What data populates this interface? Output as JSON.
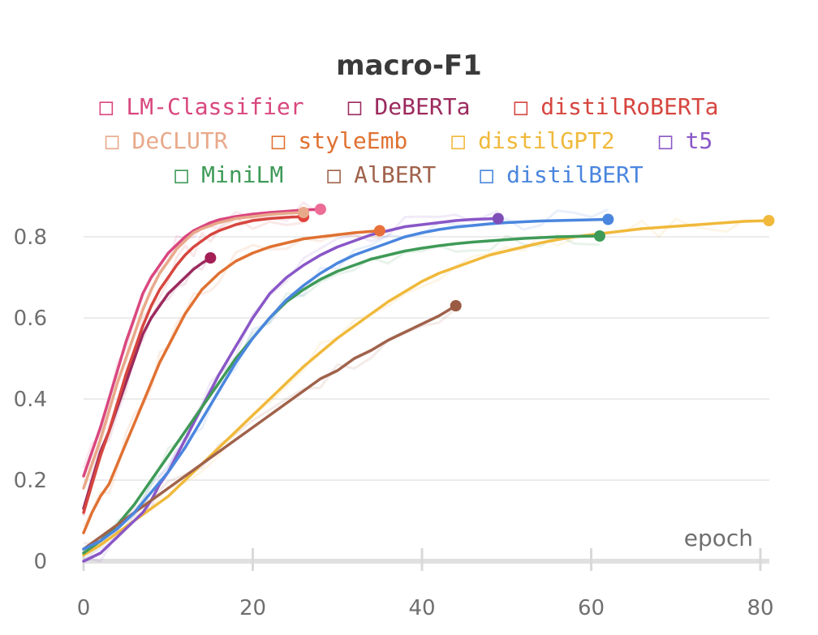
{
  "chart_data": {
    "type": "line",
    "title": "macro-F1",
    "xlabel": "epoch",
    "ylabel": "",
    "xlim": [
      0,
      81
    ],
    "ylim": [
      0,
      0.9
    ],
    "x_ticks": [
      "0",
      "20",
      "40",
      "60",
      "80"
    ],
    "y_ticks": [
      "0",
      "0.2",
      "0.4",
      "0.6",
      "0.8"
    ],
    "grid": "horizontal",
    "legend_position": "top",
    "legend_marker": "□",
    "series": [
      {
        "name": "LM-Classifier",
        "color": "#d9477e",
        "marker_color": "#ec6c95",
        "x": [
          0,
          1,
          2,
          3,
          4,
          5,
          6,
          7,
          8,
          9,
          10,
          11,
          12,
          13,
          14,
          15,
          16,
          18,
          20,
          22,
          24,
          26,
          28
        ],
        "y": [
          0.21,
          0.27,
          0.33,
          0.4,
          0.47,
          0.54,
          0.6,
          0.66,
          0.7,
          0.73,
          0.76,
          0.78,
          0.8,
          0.815,
          0.825,
          0.835,
          0.842,
          0.85,
          0.856,
          0.86,
          0.863,
          0.866,
          0.868
        ]
      },
      {
        "name": "DeBERTa",
        "color": "#9c2a5e",
        "marker_color": "#a31f56",
        "x": [
          0,
          1,
          2,
          3,
          4,
          5,
          6,
          7,
          8,
          9,
          10,
          11,
          12,
          13,
          14,
          15
        ],
        "y": [
          0.13,
          0.2,
          0.27,
          0.32,
          0.38,
          0.44,
          0.5,
          0.56,
          0.6,
          0.63,
          0.66,
          0.68,
          0.7,
          0.72,
          0.735,
          0.748
        ]
      },
      {
        "name": "distilRoBERTa",
        "color": "#d6463f",
        "marker_color": "#e0443c",
        "x": [
          0,
          1,
          2,
          3,
          4,
          5,
          6,
          7,
          8,
          9,
          10,
          11,
          12,
          13,
          14,
          15,
          16,
          18,
          20,
          22,
          24,
          26
        ],
        "y": [
          0.12,
          0.19,
          0.26,
          0.32,
          0.39,
          0.46,
          0.52,
          0.58,
          0.63,
          0.67,
          0.7,
          0.73,
          0.755,
          0.775,
          0.79,
          0.805,
          0.815,
          0.83,
          0.84,
          0.845,
          0.848,
          0.85
        ]
      },
      {
        "name": "DeCLUTR",
        "color": "#e8a98a",
        "marker_color": "#e8a98a",
        "x": [
          0,
          1,
          2,
          3,
          4,
          5,
          6,
          7,
          8,
          9,
          10,
          11,
          12,
          13,
          14,
          16,
          18,
          20,
          22,
          24,
          26
        ],
        "y": [
          0.18,
          0.24,
          0.3,
          0.37,
          0.44,
          0.5,
          0.56,
          0.62,
          0.67,
          0.71,
          0.74,
          0.77,
          0.79,
          0.81,
          0.82,
          0.835,
          0.845,
          0.85,
          0.855,
          0.858,
          0.86
        ]
      },
      {
        "name": "styleEmb",
        "color": "#e07132",
        "marker_color": "#e8703a",
        "x": [
          0,
          1,
          2,
          3,
          4,
          5,
          6,
          7,
          8,
          9,
          10,
          11,
          12,
          13,
          14,
          15,
          16,
          18,
          20,
          22,
          24,
          26,
          28,
          30,
          32,
          35
        ],
        "y": [
          0.07,
          0.12,
          0.16,
          0.19,
          0.24,
          0.29,
          0.34,
          0.39,
          0.44,
          0.49,
          0.53,
          0.57,
          0.61,
          0.64,
          0.67,
          0.69,
          0.71,
          0.74,
          0.76,
          0.775,
          0.785,
          0.795,
          0.8,
          0.805,
          0.81,
          0.815
        ]
      },
      {
        "name": "distilGPT2",
        "color": "#f0b93b",
        "marker_color": "#f0b93b",
        "x": [
          0,
          2,
          4,
          6,
          8,
          10,
          12,
          14,
          16,
          18,
          20,
          22,
          24,
          26,
          28,
          30,
          32,
          34,
          36,
          38,
          40,
          42,
          44,
          46,
          48,
          50,
          52,
          54,
          56,
          58,
          60,
          62,
          64,
          66,
          68,
          70,
          72,
          74,
          76,
          78,
          81
        ],
        "y": [
          0.015,
          0.04,
          0.07,
          0.1,
          0.13,
          0.16,
          0.2,
          0.24,
          0.28,
          0.32,
          0.36,
          0.4,
          0.44,
          0.48,
          0.515,
          0.55,
          0.58,
          0.61,
          0.64,
          0.665,
          0.69,
          0.71,
          0.725,
          0.74,
          0.755,
          0.765,
          0.775,
          0.785,
          0.793,
          0.8,
          0.805,
          0.81,
          0.815,
          0.82,
          0.823,
          0.826,
          0.829,
          0.832,
          0.835,
          0.838,
          0.84
        ]
      },
      {
        "name": "t5",
        "color": "#8957c7",
        "marker_color": "#7e4fb8",
        "x": [
          0,
          1,
          2,
          3,
          4,
          5,
          6,
          7,
          8,
          9,
          10,
          11,
          12,
          13,
          14,
          15,
          16,
          18,
          20,
          22,
          24,
          26,
          28,
          30,
          32,
          34,
          36,
          38,
          40,
          42,
          44,
          46,
          49
        ],
        "y": [
          0.0,
          0.01,
          0.02,
          0.04,
          0.06,
          0.08,
          0.1,
          0.12,
          0.15,
          0.19,
          0.22,
          0.26,
          0.3,
          0.34,
          0.38,
          0.42,
          0.46,
          0.53,
          0.6,
          0.66,
          0.7,
          0.73,
          0.755,
          0.775,
          0.79,
          0.805,
          0.815,
          0.825,
          0.83,
          0.835,
          0.84,
          0.843,
          0.845
        ]
      },
      {
        "name": "MiniLM",
        "color": "#3e9a57",
        "marker_color": "#3e9a57",
        "x": [
          0,
          2,
          4,
          6,
          8,
          10,
          12,
          14,
          16,
          18,
          20,
          22,
          24,
          26,
          28,
          30,
          32,
          34,
          36,
          38,
          40,
          42,
          44,
          46,
          48,
          50,
          52,
          54,
          56,
          58,
          61
        ],
        "y": [
          0.02,
          0.05,
          0.09,
          0.14,
          0.2,
          0.26,
          0.32,
          0.38,
          0.44,
          0.5,
          0.55,
          0.6,
          0.64,
          0.67,
          0.695,
          0.715,
          0.73,
          0.745,
          0.755,
          0.765,
          0.772,
          0.778,
          0.783,
          0.787,
          0.79,
          0.793,
          0.796,
          0.798,
          0.8,
          0.801,
          0.802
        ]
      },
      {
        "name": "AlBERT",
        "color": "#a0624b",
        "marker_color": "#9a5a43",
        "x": [
          0,
          2,
          4,
          6,
          8,
          10,
          12,
          14,
          16,
          18,
          20,
          22,
          24,
          26,
          28,
          30,
          32,
          34,
          36,
          38,
          40,
          42,
          44
        ],
        "y": [
          0.03,
          0.06,
          0.09,
          0.12,
          0.15,
          0.18,
          0.21,
          0.24,
          0.27,
          0.3,
          0.33,
          0.36,
          0.39,
          0.42,
          0.45,
          0.47,
          0.5,
          0.52,
          0.545,
          0.565,
          0.585,
          0.605,
          0.63
        ]
      },
      {
        "name": "distilBERT",
        "color": "#4a86de",
        "marker_color": "#4a86de",
        "x": [
          0,
          2,
          4,
          6,
          8,
          10,
          12,
          14,
          16,
          18,
          20,
          22,
          24,
          26,
          28,
          30,
          32,
          34,
          36,
          38,
          40,
          42,
          44,
          46,
          48,
          50,
          52,
          54,
          56,
          58,
          60,
          62
        ],
        "y": [
          0.03,
          0.05,
          0.08,
          0.12,
          0.17,
          0.22,
          0.28,
          0.35,
          0.42,
          0.49,
          0.55,
          0.6,
          0.645,
          0.68,
          0.71,
          0.735,
          0.755,
          0.77,
          0.785,
          0.8,
          0.81,
          0.818,
          0.824,
          0.828,
          0.832,
          0.835,
          0.837,
          0.839,
          0.84,
          0.841,
          0.842,
          0.843
        ]
      }
    ]
  }
}
